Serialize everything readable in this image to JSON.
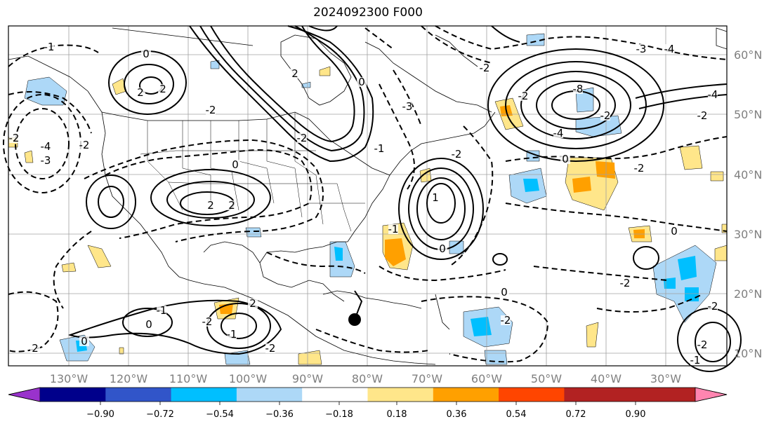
{
  "title": "2024092300 F000",
  "map": {
    "lon_labels": [
      "130°W",
      "120°W",
      "110°W",
      "100°W",
      "90°W",
      "80°W",
      "70°W",
      "60°W",
      "50°W",
      "40°W",
      "30°W"
    ],
    "lat_labels": [
      "60°N",
      "50°N",
      "40°N",
      "30°N",
      "20°N",
      "10°N"
    ],
    "marker": {
      "lon": -80.8,
      "lat": 15.8
    },
    "contour_labels": [
      "0",
      "2",
      "2",
      "-2",
      "-4",
      "-3",
      "-2",
      "-2",
      "2",
      "-2",
      "0",
      "2",
      "-8",
      "-2",
      "-4",
      "-2",
      "-2",
      "0",
      "-2",
      "-2",
      "-4",
      "0",
      "-2",
      "-2",
      "0",
      "1",
      "2",
      "-1",
      "0",
      "2",
      "-1",
      "0",
      "-1",
      "2",
      "-2",
      "-1",
      "-2",
      "-3",
      "-2",
      "-4",
      "-3",
      "0",
      "0",
      "-1",
      "-1",
      "-2",
      "-2"
    ]
  },
  "colorbar": {
    "tick_labels": [
      "−0.90",
      "−0.72",
      "−0.54",
      "−0.36",
      "−0.18",
      "0.18",
      "0.36",
      "0.54",
      "0.72",
      "0.90"
    ],
    "colors": [
      "#9932cc",
      "#00008b",
      "#3155c9",
      "#00bfff",
      "#add8f7",
      "#ffffff",
      "#ffe68a",
      "#ffa000",
      "#ff4500",
      "#b22222",
      "#ff85b0"
    ]
  }
}
